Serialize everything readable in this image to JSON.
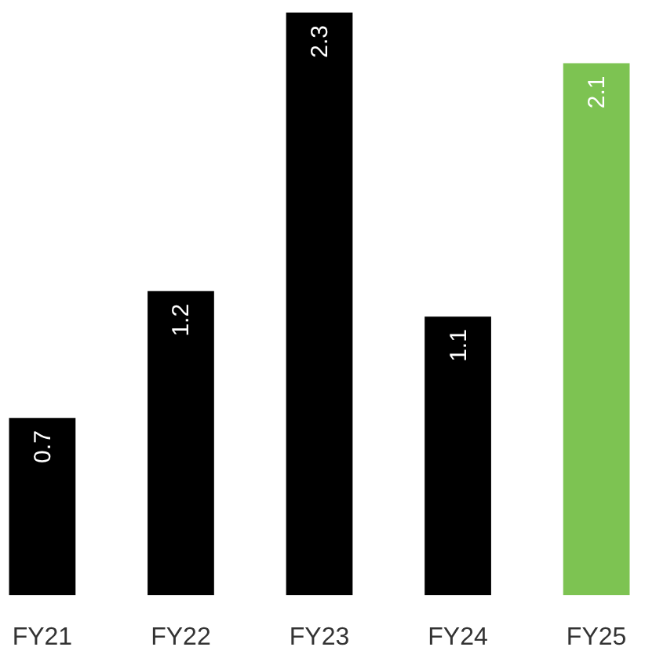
{
  "chart_data": {
    "type": "bar",
    "categories": [
      "FY21",
      "FY22",
      "FY23",
      "FY24",
      "FY25"
    ],
    "values": [
      0.7,
      1.2,
      2.3,
      1.1,
      2.1
    ],
    "colors": [
      "#000000",
      "#000000",
      "#000000",
      "#000000",
      "#7dc352"
    ],
    "ylim": [
      0,
      2.3
    ],
    "data_labels": true,
    "grid": false,
    "tick_labels": "x"
  }
}
